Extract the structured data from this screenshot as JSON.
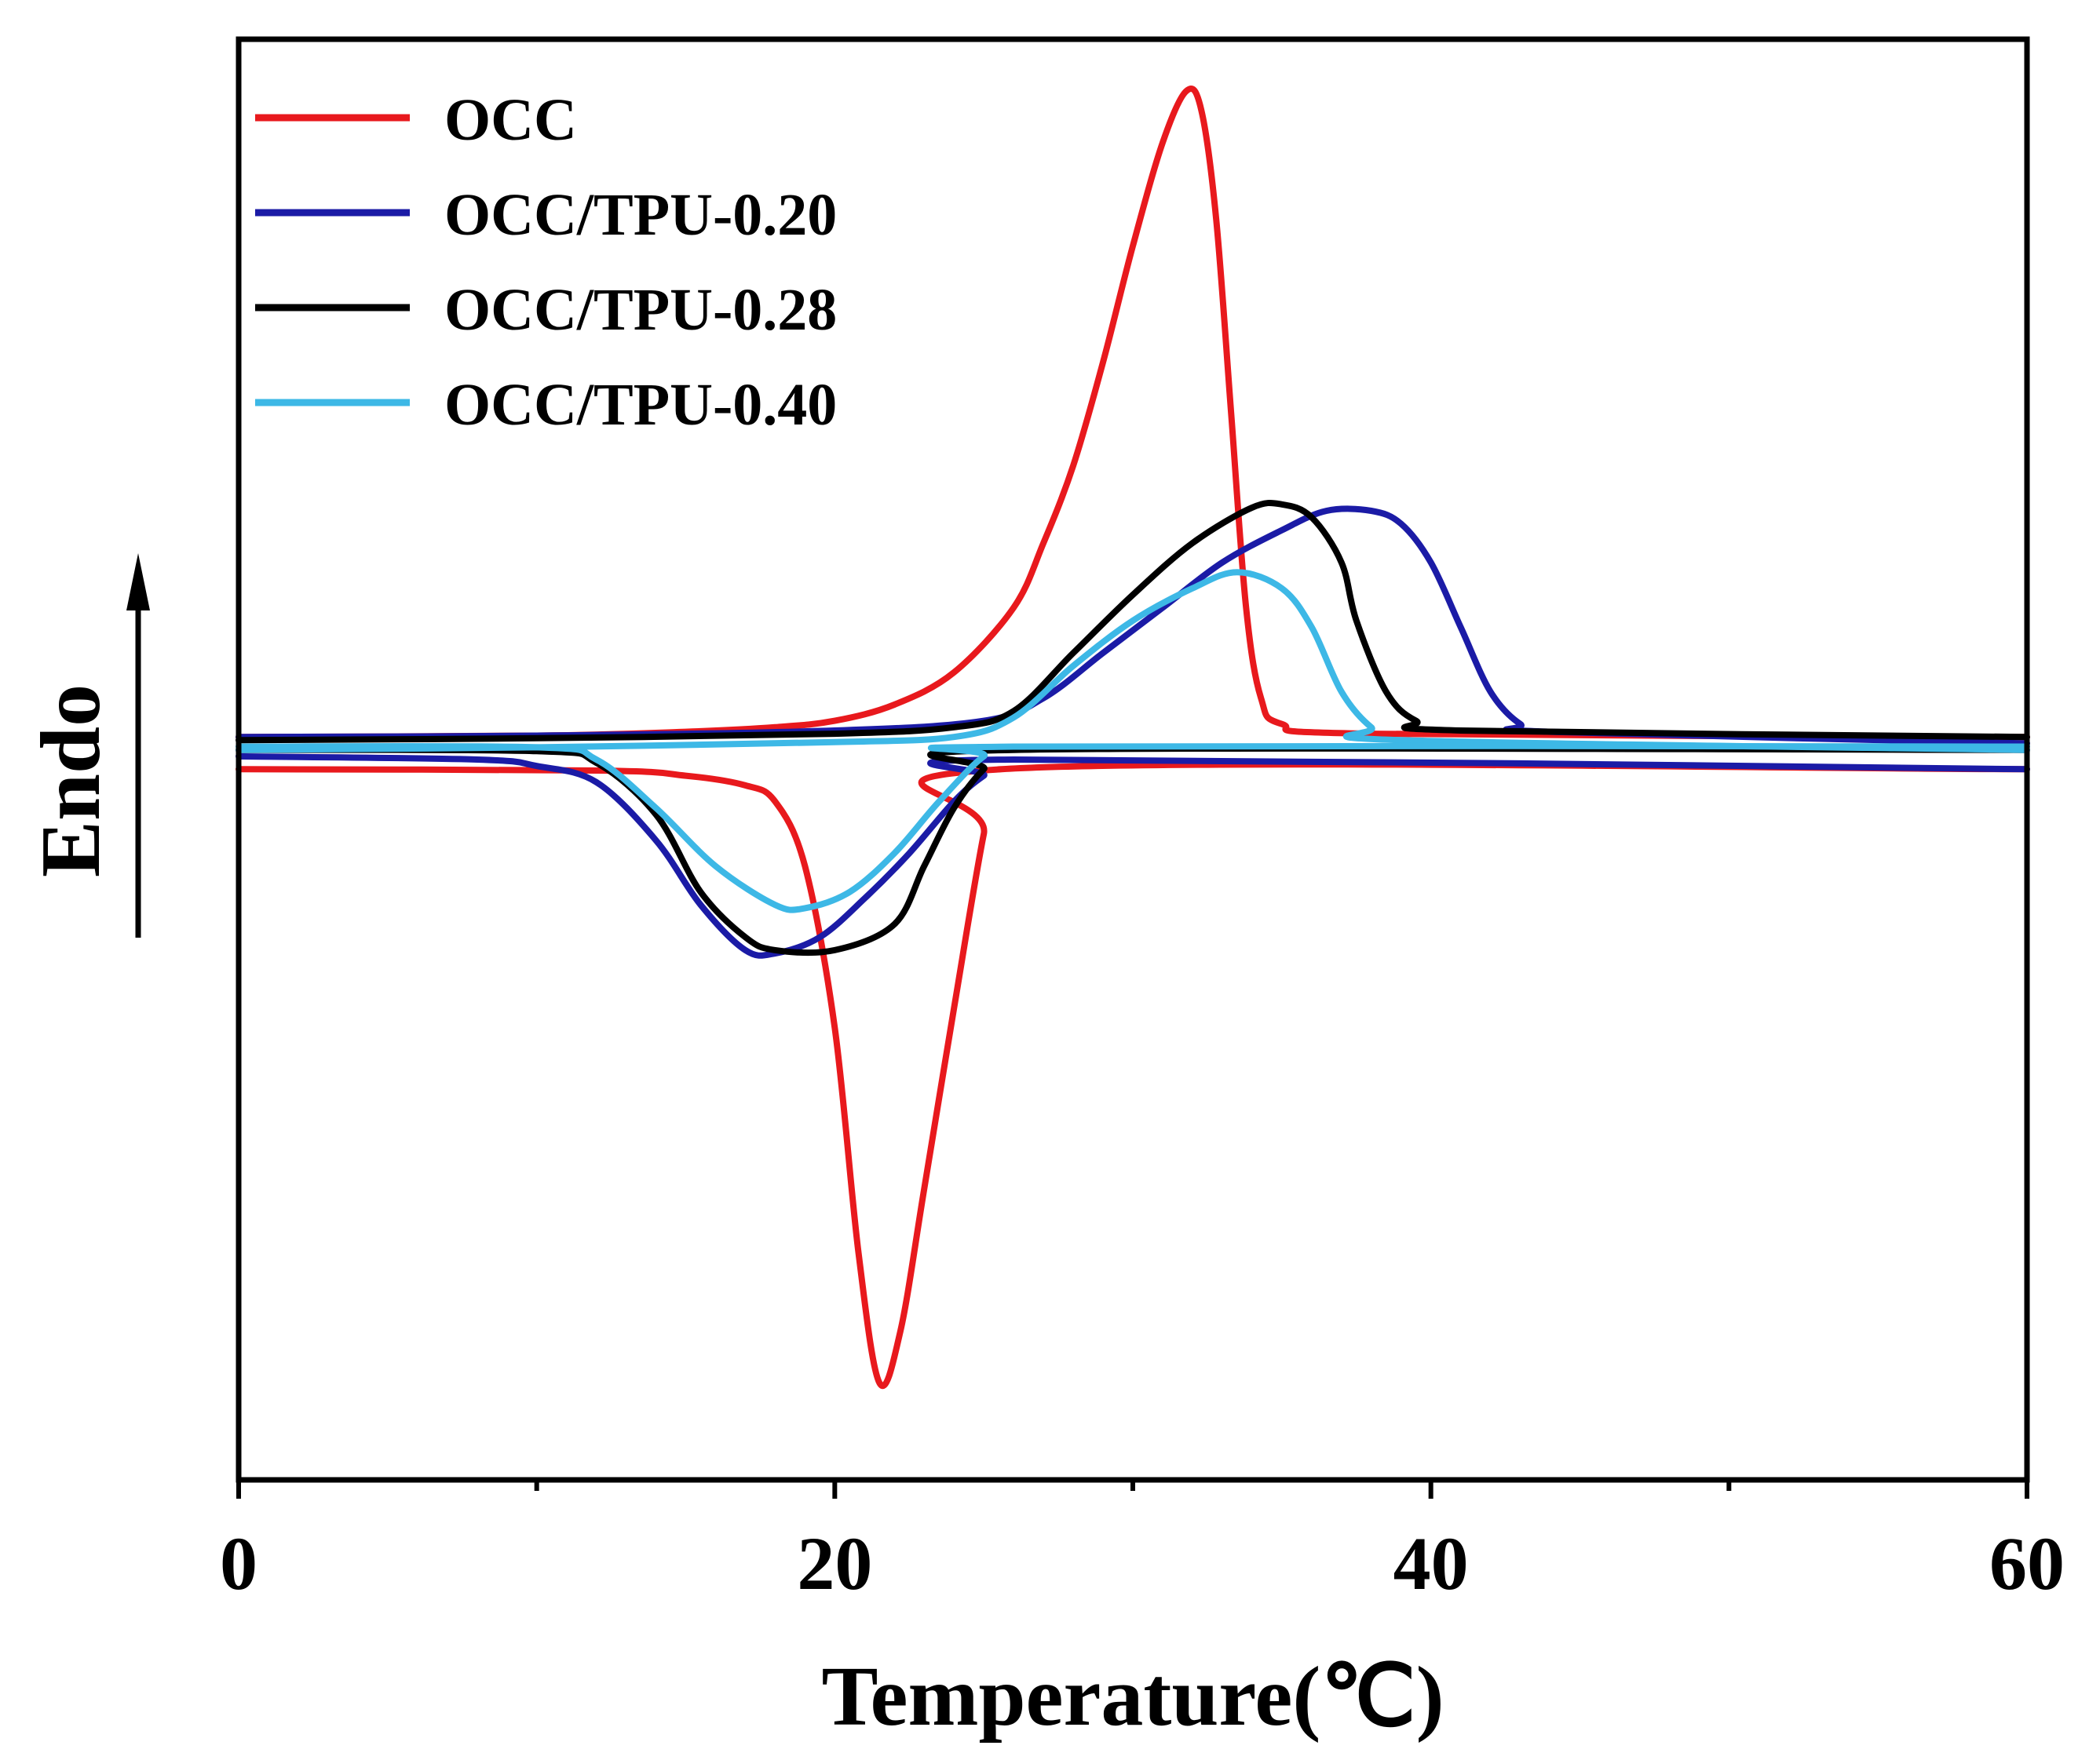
{
  "chart_data": {
    "type": "line",
    "title": "",
    "xlabel": "Temperature(℃)",
    "ylabel": "Endo",
    "xlim": [
      0,
      60
    ],
    "ylim": [
      -1.15,
      1.08
    ],
    "x_ticks": [
      "0",
      "20",
      "40",
      "60"
    ],
    "grid": false,
    "legend_position": "top-left",
    "series": [
      {
        "name": "OCC",
        "color": "#e8191d",
        "heating": [
          [
            0,
            0.0
          ],
          [
            10,
            0.002
          ],
          [
            15,
            0.008
          ],
          [
            18,
            0.015
          ],
          [
            20,
            0.025
          ],
          [
            22,
            0.05
          ],
          [
            24,
            0.1
          ],
          [
            26,
            0.2
          ],
          [
            27,
            0.3
          ],
          [
            28,
            0.42
          ],
          [
            29,
            0.58
          ],
          [
            30,
            0.76
          ],
          [
            31,
            0.92
          ],
          [
            31.8,
            1.0
          ],
          [
            32.3,
            0.97
          ],
          [
            32.8,
            0.8
          ],
          [
            33.3,
            0.5
          ],
          [
            33.8,
            0.2
          ],
          [
            34.3,
            0.06
          ],
          [
            35,
            0.02
          ],
          [
            38,
            0.005
          ],
          [
            60,
            0.0
          ]
        ],
        "cooling": [
          [
            0,
            -0.05
          ],
          [
            12,
            -0.052
          ],
          [
            15,
            -0.06
          ],
          [
            17,
            -0.075
          ],
          [
            18,
            -0.1
          ],
          [
            19,
            -0.2
          ],
          [
            20,
            -0.45
          ],
          [
            20.8,
            -0.8
          ],
          [
            21.5,
            -1.0
          ],
          [
            22.2,
            -0.92
          ],
          [
            23,
            -0.7
          ],
          [
            24,
            -0.42
          ],
          [
            25,
            -0.15
          ],
          [
            25.6,
            -0.05
          ],
          [
            60,
            -0.05
          ]
        ]
      },
      {
        "name": "OCC/TPU-0.20",
        "color": "#1b1ba6",
        "heating": [
          [
            0,
            0.0
          ],
          [
            10,
            0.002
          ],
          [
            20,
            0.01
          ],
          [
            25,
            0.025
          ],
          [
            27,
            0.06
          ],
          [
            29,
            0.13
          ],
          [
            31,
            0.2
          ],
          [
            33,
            0.27
          ],
          [
            35,
            0.32
          ],
          [
            36.5,
            0.35
          ],
          [
            38,
            0.35
          ],
          [
            39,
            0.33
          ],
          [
            40,
            0.27
          ],
          [
            41,
            0.17
          ],
          [
            42,
            0.07
          ],
          [
            43,
            0.02
          ],
          [
            44,
            0.008
          ],
          [
            60,
            -0.01
          ]
        ],
        "cooling": [
          [
            0,
            -0.03
          ],
          [
            8,
            -0.035
          ],
          [
            10,
            -0.045
          ],
          [
            12,
            -0.07
          ],
          [
            14,
            -0.16
          ],
          [
            15.5,
            -0.26
          ],
          [
            17,
            -0.33
          ],
          [
            18,
            -0.335
          ],
          [
            19.5,
            -0.31
          ],
          [
            21,
            -0.25
          ],
          [
            22.5,
            -0.18
          ],
          [
            24,
            -0.1
          ],
          [
            25,
            -0.06
          ],
          [
            26,
            -0.035
          ],
          [
            60,
            -0.05
          ]
        ]
      },
      {
        "name": "OCC/TPU-0.28",
        "color": "#000000",
        "heating": [
          [
            0,
            -0.005
          ],
          [
            10,
            -0.002
          ],
          [
            20,
            0.005
          ],
          [
            24,
            0.015
          ],
          [
            26,
            0.04
          ],
          [
            28,
            0.13
          ],
          [
            30,
            0.22
          ],
          [
            32,
            0.3
          ],
          [
            34,
            0.355
          ],
          [
            35,
            0.36
          ],
          [
            36,
            0.34
          ],
          [
            37,
            0.27
          ],
          [
            37.5,
            0.18
          ],
          [
            38.5,
            0.07
          ],
          [
            39.5,
            0.025
          ],
          [
            41,
            0.01
          ],
          [
            60,
            0.0
          ]
        ],
        "cooling": [
          [
            0,
            -0.02
          ],
          [
            10,
            -0.022
          ],
          [
            12,
            -0.04
          ],
          [
            14,
            -0.12
          ],
          [
            15.5,
            -0.24
          ],
          [
            17,
            -0.31
          ],
          [
            18,
            -0.33
          ],
          [
            20,
            -0.33
          ],
          [
            22,
            -0.29
          ],
          [
            23,
            -0.2
          ],
          [
            24,
            -0.11
          ],
          [
            25,
            -0.05
          ],
          [
            26,
            -0.02
          ],
          [
            60,
            -0.02
          ]
        ]
      },
      {
        "name": "OCC/TPU-0.40",
        "color": "#3db8e6",
        "heating": [
          [
            0,
            -0.02
          ],
          [
            10,
            -0.016
          ],
          [
            20,
            -0.008
          ],
          [
            24,
            0.0
          ],
          [
            26,
            0.03
          ],
          [
            28,
            0.11
          ],
          [
            30,
            0.18
          ],
          [
            32,
            0.23
          ],
          [
            33.5,
            0.255
          ],
          [
            35,
            0.23
          ],
          [
            36,
            0.17
          ],
          [
            37,
            0.07
          ],
          [
            38,
            0.015
          ],
          [
            39,
            -0.005
          ],
          [
            60,
            -0.02
          ]
        ],
        "cooling": [
          [
            0,
            -0.015
          ],
          [
            10,
            -0.016
          ],
          [
            12,
            -0.035
          ],
          [
            14,
            -0.11
          ],
          [
            16,
            -0.2
          ],
          [
            18,
            -0.26
          ],
          [
            19,
            -0.265
          ],
          [
            20.5,
            -0.24
          ],
          [
            22,
            -0.18
          ],
          [
            23.5,
            -0.1
          ],
          [
            25,
            -0.03
          ],
          [
            26,
            -0.015
          ],
          [
            60,
            -0.015
          ]
        ]
      }
    ]
  }
}
